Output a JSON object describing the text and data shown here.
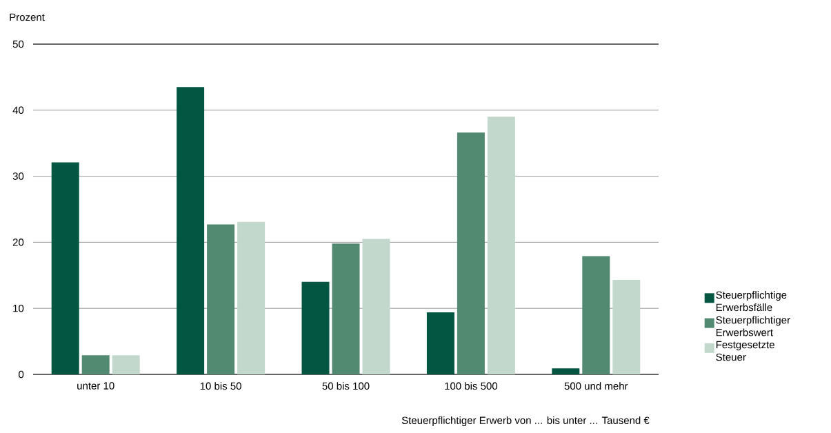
{
  "chart_data": {
    "type": "bar",
    "ylabel": "Prozent",
    "xlabel": "Steuerpflichtiger Erwerb von ... bis unter ... Tausend €",
    "categories": [
      "unter 10",
      "10 bis 50",
      "50 bis 100",
      "100 bis 500",
      "500 und mehr"
    ],
    "series": [
      {
        "name": "Steuerpflichtige Erwerbsfälle",
        "color": "#035642",
        "values": [
          32.1,
          43.5,
          14.0,
          9.4,
          0.9
        ]
      },
      {
        "name": "Steuerpflichtiger Erwerbswert",
        "color": "#518a70",
        "values": [
          2.9,
          22.7,
          19.8,
          36.6,
          17.9
        ]
      },
      {
        "name": "Festgesetzte Steuer",
        "color": "#c3d8cc",
        "values": [
          2.9,
          23.1,
          20.5,
          39.0,
          14.3
        ]
      }
    ],
    "ylim": [
      0,
      50
    ],
    "yticks": [
      0,
      10,
      20,
      30,
      40,
      50
    ],
    "grid": "y",
    "legend": "right"
  }
}
